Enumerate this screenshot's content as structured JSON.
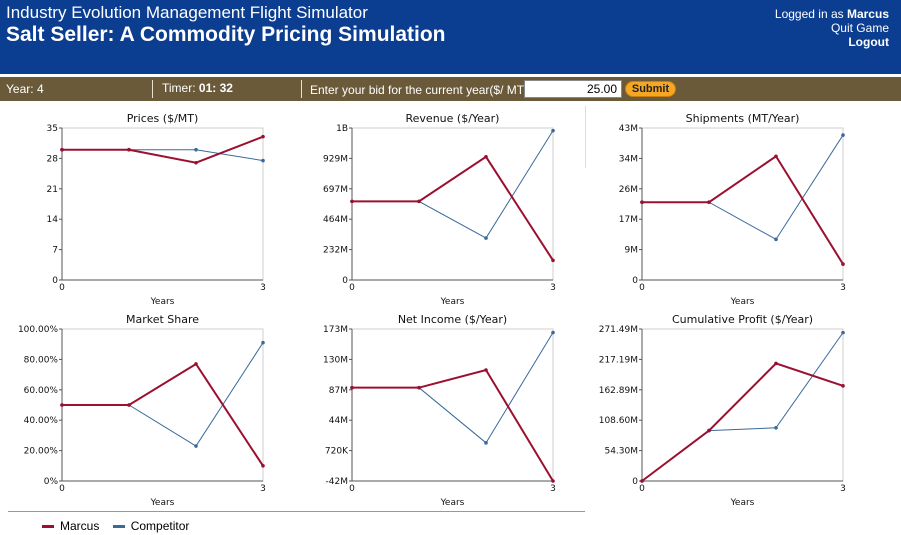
{
  "header": {
    "app_title": "Industry Evolution Management Flight Simulator",
    "game_title": "Salt Seller: A Commodity Pricing Simulation",
    "logged_in_prefix": "Logged in as ",
    "username": "Marcus",
    "quit_label": "Quit Game",
    "logout_label": "Logout"
  },
  "controls": {
    "year_label": "Year:",
    "year_value": "4",
    "timer_label": "Timer:",
    "timer_minutes": "01",
    "timer_sep": ":",
    "timer_seconds": "32",
    "bid_label": "Enter your bid for the current year($/ MT):",
    "bid_value": "25.00",
    "submit_label": "Submit"
  },
  "colors": {
    "marcus": "#9b1030",
    "competitor": "#3a6a99",
    "header_bg": "#0b3d91",
    "controlbar_bg": "#6b5a3a",
    "submit_bg": "#f5a623"
  },
  "legend": [
    {
      "name": "Marcus",
      "color": "#9b1030"
    },
    {
      "name": "Competitor",
      "color": "#3a6a99"
    }
  ],
  "chart_data": [
    {
      "type": "line",
      "title": "Prices ($/MT)",
      "xlabel": "Years",
      "x": [
        0,
        1,
        2,
        3
      ],
      "x_ticks": [
        "0",
        "3"
      ],
      "y_ticks": [
        "35",
        "28",
        "21",
        "14",
        "7",
        "0"
      ],
      "ylim": [
        0,
        35
      ],
      "series": [
        {
          "name": "Marcus",
          "values": [
            30,
            30,
            27,
            33
          ]
        },
        {
          "name": "Competitor",
          "values": [
            30,
            30,
            30,
            27.5
          ]
        }
      ]
    },
    {
      "type": "line",
      "title": "Revenue ($/Year)",
      "xlabel": "Years",
      "x": [
        0,
        1,
        2,
        3
      ],
      "x_ticks": [
        "0",
        "3"
      ],
      "y_ticks": [
        "1B",
        "929M",
        "697M",
        "464M",
        "232M",
        "0"
      ],
      "ylim": [
        0,
        1160
      ],
      "series": [
        {
          "name": "Marcus",
          "values": [
            600,
            600,
            940,
            150
          ]
        },
        {
          "name": "Competitor",
          "values": [
            600,
            600,
            320,
            1140
          ]
        }
      ]
    },
    {
      "type": "line",
      "title": "Shipments (MT/Year)",
      "xlabel": "Years",
      "x": [
        0,
        1,
        2,
        3
      ],
      "x_ticks": [
        "0",
        "3"
      ],
      "y_ticks": [
        "43M",
        "34M",
        "26M",
        "17M",
        "9M",
        "0"
      ],
      "ylim": [
        0,
        43
      ],
      "series": [
        {
          "name": "Marcus",
          "values": [
            22,
            22,
            35,
            4.5
          ]
        },
        {
          "name": "Competitor",
          "values": [
            22,
            22,
            11.5,
            41
          ]
        }
      ]
    },
    {
      "type": "line",
      "title": "Market Share",
      "xlabel": "Years",
      "x": [
        0,
        1,
        2,
        3
      ],
      "x_ticks": [
        "0",
        "3"
      ],
      "y_ticks": [
        "100.00%",
        "80.00%",
        "60.00%",
        "40.00%",
        "20.00%",
        "0%"
      ],
      "ylim": [
        0,
        100
      ],
      "series": [
        {
          "name": "Marcus",
          "values": [
            50,
            50,
            77,
            10
          ]
        },
        {
          "name": "Competitor",
          "values": [
            50,
            50,
            23,
            91
          ]
        }
      ]
    },
    {
      "type": "line",
      "title": "Net Income ($/Year)",
      "xlabel": "Years",
      "x": [
        0,
        1,
        2,
        3
      ],
      "x_ticks": [
        "0",
        "3"
      ],
      "y_ticks": [
        "173M",
        "130M",
        "87M",
        "44M",
        "720K",
        "-42M"
      ],
      "ylim": [
        -42,
        173
      ],
      "series": [
        {
          "name": "Marcus",
          "values": [
            90,
            90,
            115,
            -42
          ]
        },
        {
          "name": "Competitor",
          "values": [
            90,
            90,
            12,
            168
          ]
        }
      ]
    },
    {
      "type": "line",
      "title": "Cumulative Profit ($/Year)",
      "xlabel": "Years",
      "x": [
        0,
        1,
        2,
        3
      ],
      "x_ticks": [
        "0",
        "3"
      ],
      "y_ticks": [
        "271.49M",
        "217.19M",
        "162.89M",
        "108.60M",
        "54.30M",
        "0"
      ],
      "ylim": [
        0,
        271.49
      ],
      "series": [
        {
          "name": "Marcus",
          "values": [
            0,
            90,
            210,
            170
          ]
        },
        {
          "name": "Competitor",
          "values": [
            0,
            90,
            95,
            265
          ]
        }
      ]
    }
  ]
}
